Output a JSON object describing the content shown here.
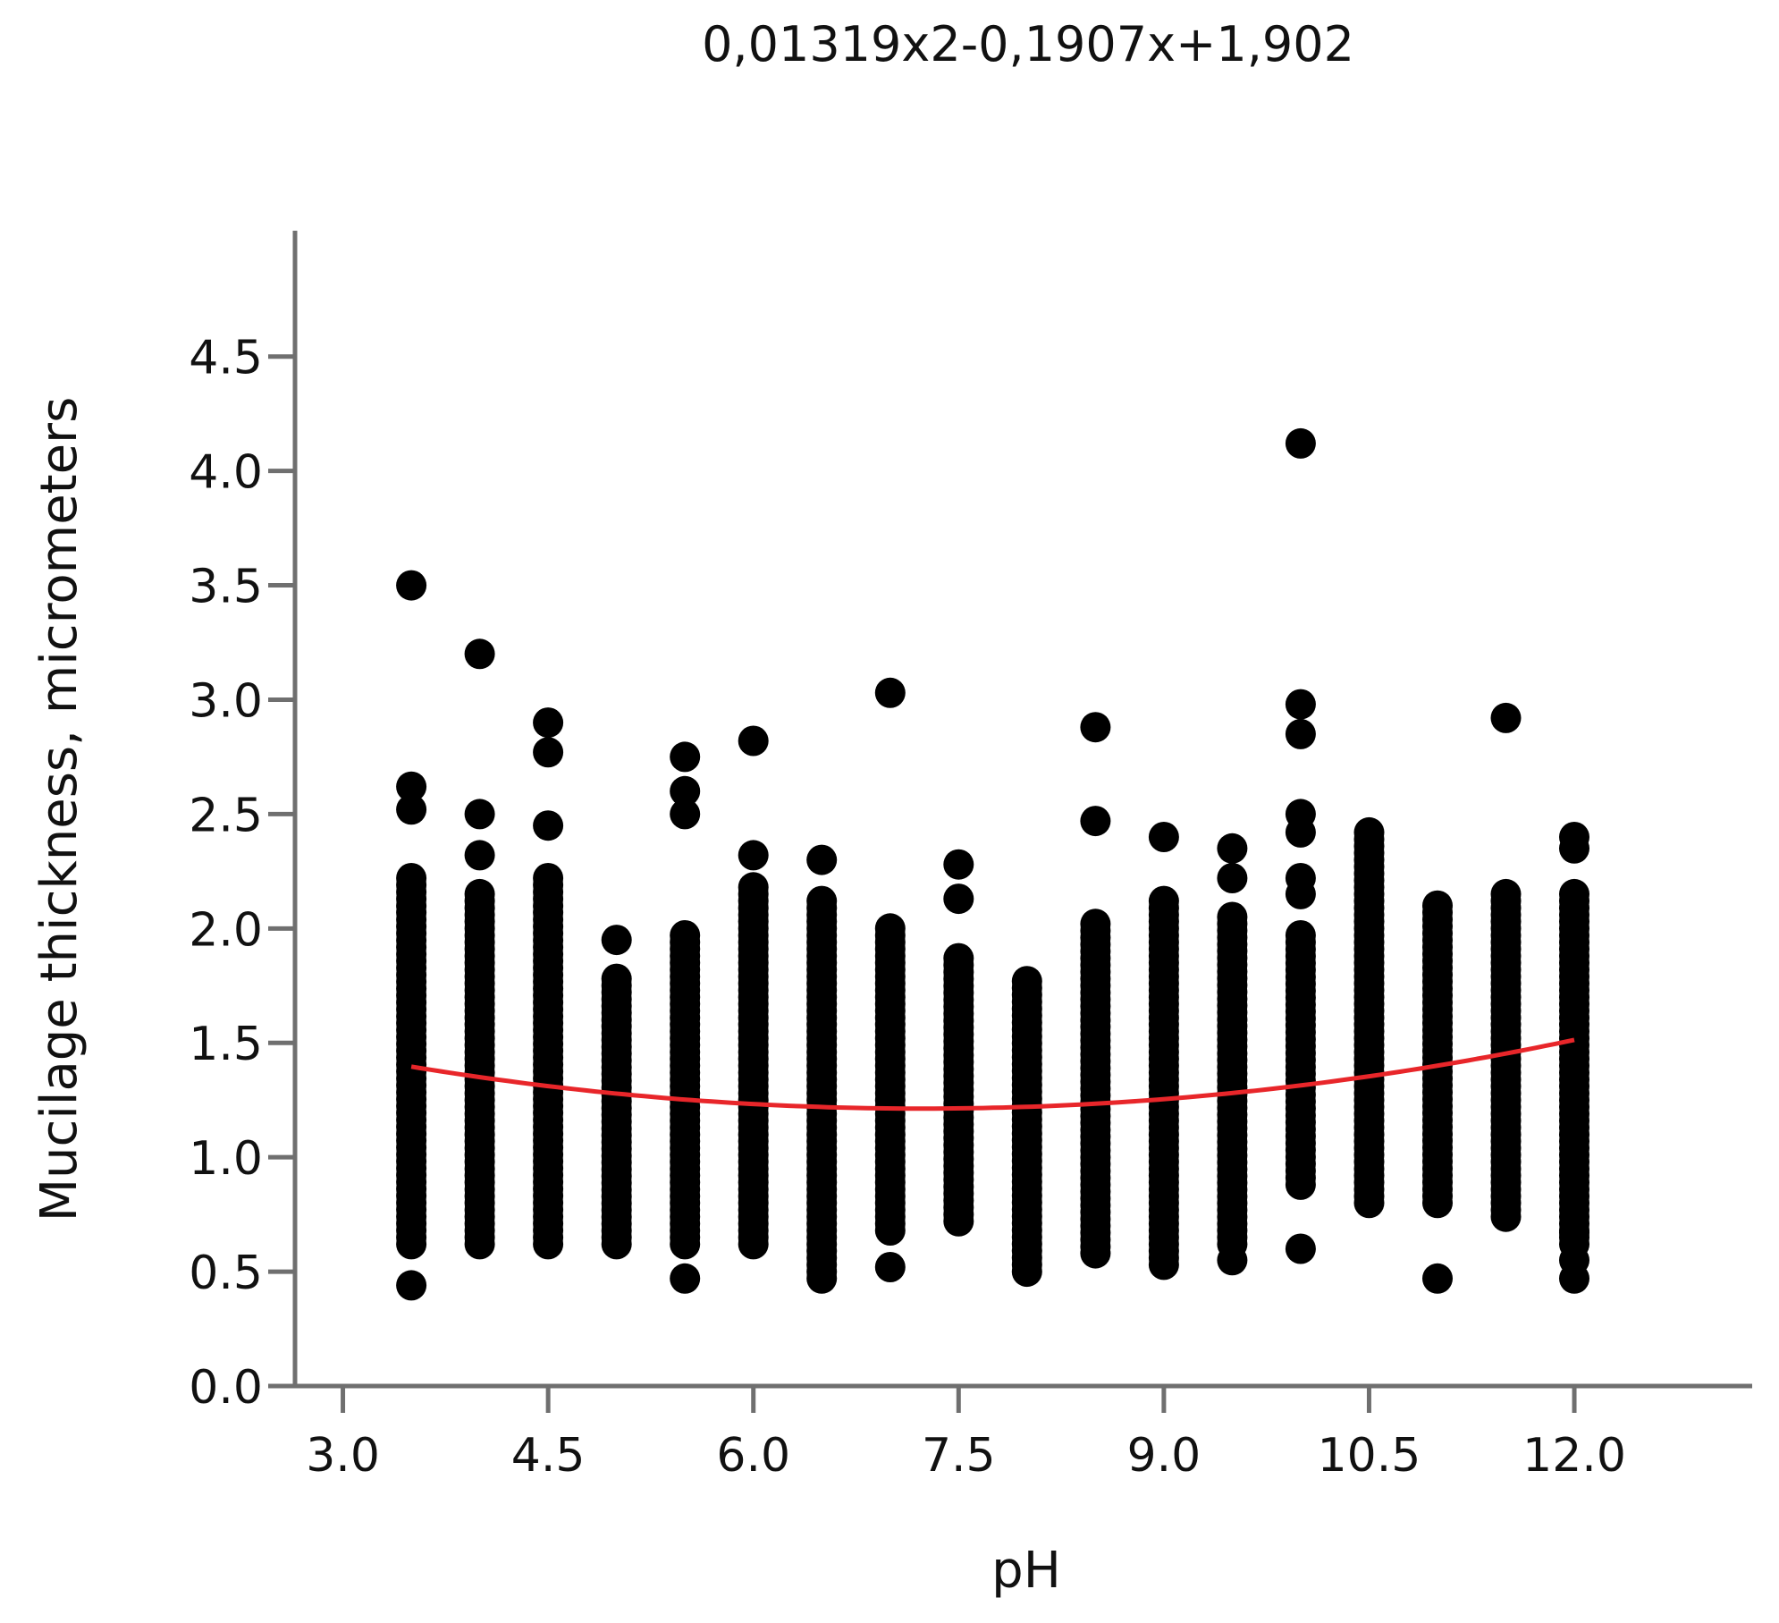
{
  "chart_data": {
    "type": "scatter",
    "title": "0,01319x2-0,1907x+1,902",
    "xlabel": "pH",
    "ylabel": "Mucilage thickness, micrometers",
    "xlim": [
      2.65,
      13.3
    ],
    "ylim": [
      0,
      5.05
    ],
    "x_ticks": [
      3.0,
      4.5,
      6.0,
      7.5,
      9.0,
      10.5,
      12.0
    ],
    "x_tick_labels": [
      "3.0",
      "4.5",
      "6.0",
      "7.5",
      "9.0",
      "10.5",
      "12.0"
    ],
    "y_ticks": [
      0.0,
      0.5,
      1.0,
      1.5,
      2.0,
      2.5,
      3.0,
      3.5,
      4.0,
      4.5
    ],
    "y_tick_labels": [
      "0.0",
      "0.5",
      "1.0",
      "1.5",
      "2.0",
      "2.5",
      "3.0",
      "3.5",
      "4.0",
      "4.5"
    ],
    "grid": false,
    "point_color": "#000000",
    "fit_color": "#e8262a",
    "fit": {
      "a": 0.01319,
      "b": -0.1907,
      "c": 1.902,
      "x_range": [
        3.5,
        12.0
      ]
    },
    "groups": [
      {
        "x": 3.5,
        "band": [
          0.62,
          2.22
        ],
        "outliers": [
          0.44,
          2.52,
          2.62,
          3.5
        ]
      },
      {
        "x": 4.0,
        "band": [
          0.62,
          2.15
        ],
        "outliers": [
          2.32,
          2.5,
          3.2
        ]
      },
      {
        "x": 4.5,
        "band": [
          0.62,
          2.22
        ],
        "outliers": [
          2.45,
          2.77,
          2.9
        ]
      },
      {
        "x": 5.0,
        "band": [
          0.62,
          1.78
        ],
        "outliers": [
          1.95
        ]
      },
      {
        "x": 5.5,
        "band": [
          0.62,
          1.97
        ],
        "outliers": [
          0.47,
          2.5,
          2.6,
          2.75
        ]
      },
      {
        "x": 6.0,
        "band": [
          0.62,
          2.18
        ],
        "outliers": [
          2.32,
          2.82
        ]
      },
      {
        "x": 6.5,
        "band": [
          0.47,
          2.12
        ],
        "outliers": [
          2.3
        ]
      },
      {
        "x": 7.0,
        "band": [
          0.68,
          2.0
        ],
        "outliers": [
          0.52,
          3.03
        ]
      },
      {
        "x": 7.5,
        "band": [
          0.72,
          1.87
        ],
        "outliers": [
          2.13,
          2.28
        ]
      },
      {
        "x": 8.0,
        "band": [
          0.5,
          1.77
        ],
        "outliers": []
      },
      {
        "x": 8.5,
        "band": [
          0.58,
          2.02
        ],
        "outliers": [
          2.47,
          2.88
        ]
      },
      {
        "x": 9.0,
        "band": [
          0.53,
          2.12
        ],
        "outliers": [
          2.4
        ]
      },
      {
        "x": 9.5,
        "band": [
          0.62,
          2.05
        ],
        "outliers": [
          0.55,
          2.22,
          2.35
        ]
      },
      {
        "x": 10.0,
        "band": [
          0.88,
          1.97
        ],
        "outliers": [
          0.6,
          2.15,
          2.22,
          2.42,
          2.5,
          2.85,
          2.98,
          4.12
        ]
      },
      {
        "x": 10.5,
        "band": [
          0.8,
          2.42
        ],
        "outliers": []
      },
      {
        "x": 11.0,
        "band": [
          0.8,
          2.1
        ],
        "outliers": [
          0.47
        ]
      },
      {
        "x": 11.5,
        "band": [
          0.74,
          2.15
        ],
        "outliers": [
          2.92
        ]
      },
      {
        "x": 12.0,
        "band": [
          0.62,
          2.15
        ],
        "outliers": [
          0.47,
          0.55,
          0.67,
          2.35,
          2.4
        ]
      }
    ]
  }
}
